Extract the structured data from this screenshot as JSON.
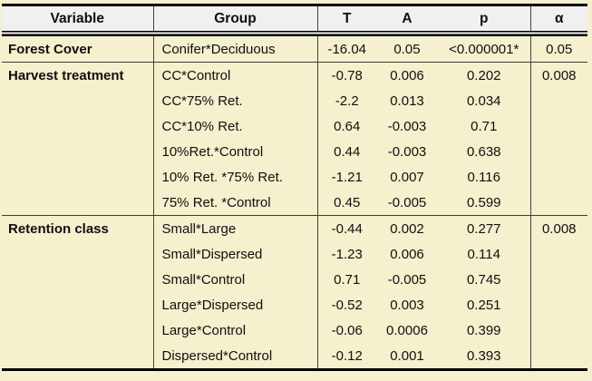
{
  "colors": {
    "page_background": "#f5f0cd",
    "header_background": "#f0f0f0",
    "outer_border": "#000000",
    "inner_lines": "#45453c"
  },
  "chart_data": {
    "type": "table",
    "columns": [
      "Variable",
      "Group",
      "T",
      "A",
      "p",
      "α"
    ],
    "sections": [
      {
        "variable": "Forest Cover",
        "alpha": "0.05",
        "rows": [
          {
            "group": "Conifer*Deciduous",
            "t": "-16.04",
            "a": "0.05",
            "p": "<0.000001*"
          }
        ]
      },
      {
        "variable": "Harvest treatment",
        "alpha": "0.008",
        "rows": [
          {
            "group": "CC*Control",
            "t": "-0.78",
            "a": "0.006",
            "p": "0.202"
          },
          {
            "group": "CC*75% Ret.",
            "t": "-2.2",
            "a": "0.013",
            "p": "0.034"
          },
          {
            "group": "CC*10% Ret.",
            "t": "0.64",
            "a": "-0.003",
            "p": "0.71"
          },
          {
            "group": "10%Ret.*Control",
            "t": "0.44",
            "a": "-0.003",
            "p": "0.638"
          },
          {
            "group": "10% Ret. *75% Ret.",
            "t": "-1.21",
            "a": "0.007",
            "p": "0.116"
          },
          {
            "group": "75% Ret. *Control",
            "t": "0.45",
            "a": "-0.005",
            "p": "0.599"
          }
        ]
      },
      {
        "variable": "Retention class",
        "alpha": "0.008",
        "rows": [
          {
            "group": "Small*Large",
            "t": "-0.44",
            "a": "0.002",
            "p": "0.277"
          },
          {
            "group": "Small*Dispersed",
            "t": "-1.23",
            "a": "0.006",
            "p": "0.114"
          },
          {
            "group": "Small*Control",
            "t": "0.71",
            "a": "-0.005",
            "p": "0.745"
          },
          {
            "group": "Large*Dispersed",
            "t": "-0.52",
            "a": "0.003",
            "p": "0.251"
          },
          {
            "group": "Large*Control",
            "t": "-0.06",
            "a": "0.0006",
            "p": "0.399"
          },
          {
            "group": "Dispersed*Control",
            "t": "-0.12",
            "a": "0.001",
            "p": "0.393"
          }
        ]
      }
    ]
  }
}
